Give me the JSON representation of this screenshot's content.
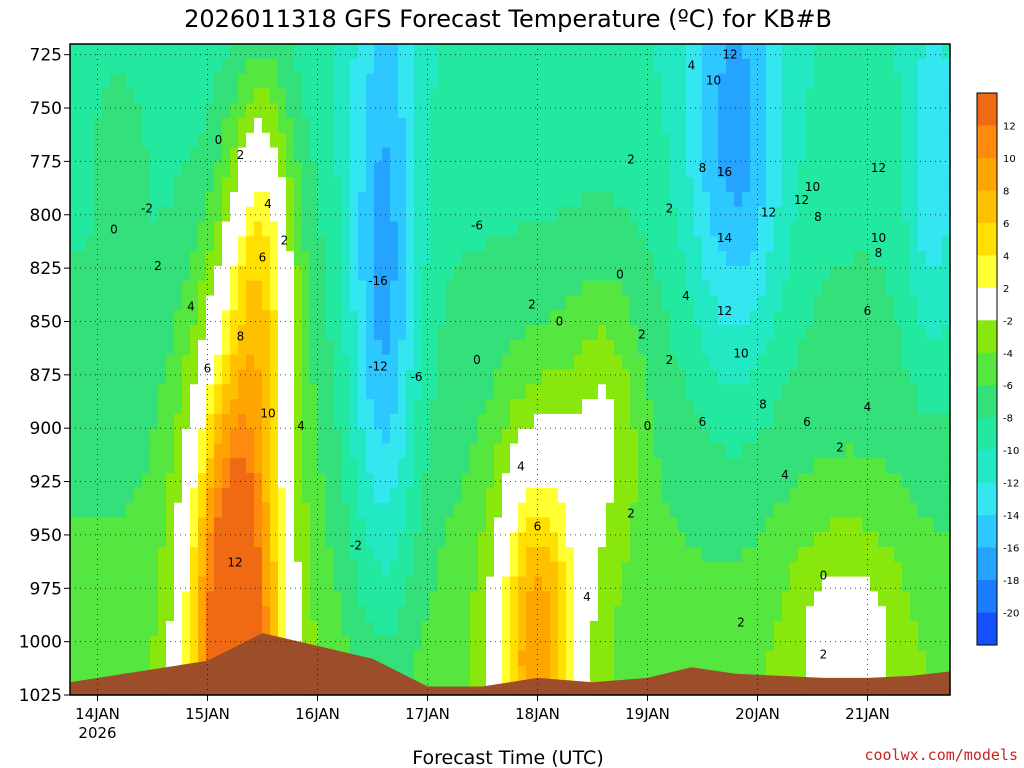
{
  "chart_data": {
    "type": "heatmap",
    "title": "2026011318 GFS Forecast Temperature (ºC) for KB#B",
    "xlabel": "Forecast Time (UTC)",
    "ylabel": "",
    "credit": "coolwx.com/models",
    "x_ticks": [
      {
        "day": 14,
        "label": "14JAN",
        "sub": "2026"
      },
      {
        "day": 15,
        "label": "15JAN",
        "sub": ""
      },
      {
        "day": 16,
        "label": "16JAN",
        "sub": ""
      },
      {
        "day": 17,
        "label": "17JAN",
        "sub": ""
      },
      {
        "day": 18,
        "label": "18JAN",
        "sub": ""
      },
      {
        "day": 19,
        "label": "19JAN",
        "sub": ""
      },
      {
        "day": 20,
        "label": "20JAN",
        "sub": ""
      },
      {
        "day": 21,
        "label": "21JAN",
        "sub": ""
      }
    ],
    "x_range": [
      13.75,
      21.75
    ],
    "y_ticks": [
      725,
      750,
      775,
      800,
      825,
      850,
      875,
      900,
      925,
      950,
      975,
      1000,
      1025
    ],
    "y_range": [
      720,
      1025
    ],
    "y_units": "hPa",
    "grid": true,
    "colorbar": {
      "levels": [
        -20,
        -18,
        -16,
        -14,
        -12,
        -10,
        -8,
        -6,
        -4,
        -2,
        2,
        4,
        6,
        8,
        10,
        12
      ],
      "colors": [
        "#1550ff",
        "#1c7cff",
        "#24a4ff",
        "#2cc8ff",
        "#33e6f0",
        "#22e8c4",
        "#22e8a0",
        "#33e07a",
        "#55e640",
        "#88e80e",
        "#ffffff",
        "#ffff33",
        "#ffe000",
        "#ffc000",
        "#ffa500",
        "#ff8a10",
        "#f06a14"
      ]
    },
    "temperature_peak": {
      "days": [
        14.0,
        14.4,
        14.8,
        15.0,
        15.3,
        15.5,
        15.75,
        16.0,
        16.3,
        16.6,
        17.0,
        17.4,
        17.7,
        17.85,
        18.0,
        18.3,
        18.6,
        18.9,
        19.2,
        19.6,
        20.0,
        20.4,
        20.8,
        21.2,
        21.7
      ],
      "max_value": 13
    },
    "ground": {
      "days": [
        13.75,
        15.0,
        15.5,
        16.0,
        16.5,
        17.0,
        17.5,
        18.0,
        18.5,
        19.0,
        19.4,
        19.8,
        20.2,
        20.6,
        21.0,
        21.4,
        21.75
      ],
      "pressure": [
        1019,
        1009,
        996,
        1002,
        1008,
        1021,
        1021,
        1017,
        1019,
        1017,
        1012,
        1015,
        1016,
        1017,
        1017,
        1016,
        1014
      ]
    },
    "contour_labels": [
      {
        "day": 14.45,
        "p": 797,
        "text": "-2"
      },
      {
        "day": 14.15,
        "p": 807,
        "text": "0"
      },
      {
        "day": 14.55,
        "p": 824,
        "text": "2"
      },
      {
        "day": 14.85,
        "p": 843,
        "text": "4"
      },
      {
        "day": 15.0,
        "p": 872,
        "text": "6"
      },
      {
        "day": 15.3,
        "p": 857,
        "text": "8"
      },
      {
        "day": 15.55,
        "p": 893,
        "text": "10"
      },
      {
        "day": 15.25,
        "p": 963,
        "text": "12"
      },
      {
        "day": 15.1,
        "p": 765,
        "text": "0"
      },
      {
        "day": 15.3,
        "p": 772,
        "text": "2"
      },
      {
        "day": 15.55,
        "p": 795,
        "text": "4"
      },
      {
        "day": 15.5,
        "p": 820,
        "text": "6"
      },
      {
        "day": 15.7,
        "p": 812,
        "text": "2"
      },
      {
        "day": 15.85,
        "p": 899,
        "text": "4"
      },
      {
        "day": 16.35,
        "p": 955,
        "text": "-2"
      },
      {
        "day": 16.55,
        "p": 831,
        "text": "-16"
      },
      {
        "day": 16.55,
        "p": 871,
        "text": "-12"
      },
      {
        "day": 16.9,
        "p": 876,
        "text": "-6"
      },
      {
        "day": 17.45,
        "p": 805,
        "text": "-6"
      },
      {
        "day": 17.45,
        "p": 868,
        "text": "0"
      },
      {
        "day": 17.85,
        "p": 918,
        "text": "4"
      },
      {
        "day": 18.0,
        "p": 946,
        "text": "6"
      },
      {
        "day": 17.95,
        "p": 842,
        "text": "2"
      },
      {
        "day": 18.2,
        "p": 850,
        "text": "0"
      },
      {
        "day": 18.85,
        "p": 940,
        "text": "2"
      },
      {
        "day": 18.45,
        "p": 979,
        "text": "4"
      },
      {
        "day": 18.75,
        "p": 828,
        "text": "0"
      },
      {
        "day": 18.95,
        "p": 856,
        "text": "2"
      },
      {
        "day": 19.0,
        "p": 899,
        "text": "0"
      },
      {
        "day": 18.85,
        "p": 774,
        "text": "2"
      },
      {
        "day": 19.2,
        "p": 797,
        "text": "2"
      },
      {
        "day": 19.2,
        "p": 868,
        "text": "2"
      },
      {
        "day": 19.4,
        "p": 730,
        "text": "4"
      },
      {
        "day": 19.35,
        "p": 838,
        "text": "4"
      },
      {
        "day": 19.5,
        "p": 897,
        "text": "6"
      },
      {
        "day": 19.5,
        "p": 778,
        "text": "8"
      },
      {
        "day": 19.6,
        "p": 737,
        "text": "10"
      },
      {
        "day": 19.75,
        "p": 725,
        "text": "12"
      },
      {
        "day": 19.7,
        "p": 780,
        "text": "16"
      },
      {
        "day": 19.7,
        "p": 811,
        "text": "14"
      },
      {
        "day": 19.7,
        "p": 845,
        "text": "12"
      },
      {
        "day": 19.85,
        "p": 865,
        "text": "10"
      },
      {
        "day": 20.1,
        "p": 799,
        "text": "12"
      },
      {
        "day": 20.4,
        "p": 793,
        "text": "12"
      },
      {
        "day": 20.5,
        "p": 787,
        "text": "10"
      },
      {
        "day": 20.55,
        "p": 801,
        "text": "8"
      },
      {
        "day": 20.05,
        "p": 889,
        "text": "8"
      },
      {
        "day": 20.45,
        "p": 897,
        "text": "6"
      },
      {
        "day": 20.25,
        "p": 922,
        "text": "4"
      },
      {
        "day": 20.75,
        "p": 909,
        "text": "2"
      },
      {
        "day": 20.6,
        "p": 969,
        "text": "0"
      },
      {
        "day": 19.85,
        "p": 991,
        "text": "2"
      },
      {
        "day": 20.6,
        "p": 1006,
        "text": "2"
      },
      {
        "day": 21.0,
        "p": 845,
        "text": "6"
      },
      {
        "day": 21.0,
        "p": 890,
        "text": "4"
      },
      {
        "day": 21.1,
        "p": 818,
        "text": "8"
      },
      {
        "day": 21.1,
        "p": 811,
        "text": "10"
      },
      {
        "day": 21.1,
        "p": 778,
        "text": "12"
      }
    ]
  }
}
